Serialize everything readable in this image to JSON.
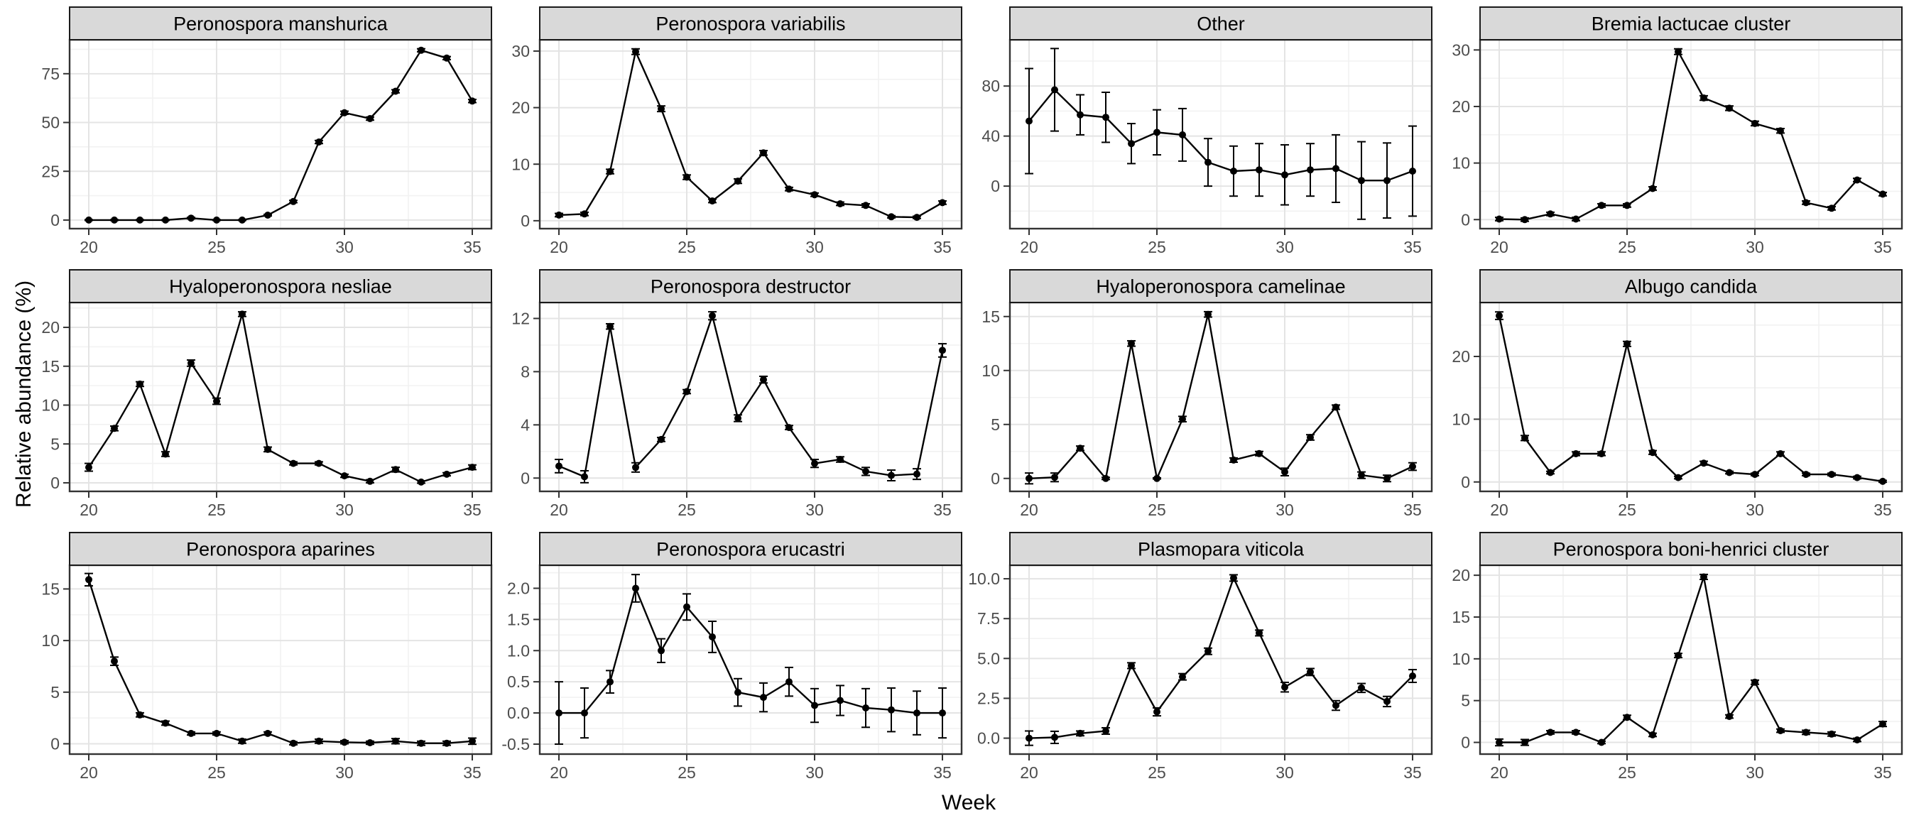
{
  "figure": {
    "kind": "faceted line chart (ggplot-style), 3 rows x 4 columns",
    "background": "#ffffff"
  },
  "style": {
    "strip_fill": "#d9d9d9",
    "strip_border": "#1a1a1a",
    "panel_border": "#333333",
    "grid_major": "#e4e4e4",
    "grid_minor": "#f2f2f2",
    "tick_color": "#333333",
    "tick_label_color": "#4d4d4d",
    "axis_title_color": "#000000",
    "series_color": "#000000"
  },
  "chart_data": {
    "type": "line",
    "faceted": true,
    "xlabel": "Week",
    "ylabel": "Relative abundance (%)",
    "x": [
      20,
      21,
      22,
      23,
      24,
      25,
      26,
      27,
      28,
      29,
      30,
      31,
      32,
      33,
      34,
      35
    ],
    "x_ticks": [
      20,
      25,
      30,
      35
    ],
    "x_tick_labels": [
      "20",
      "25",
      "30",
      "35"
    ],
    "x_domain": [
      19.25,
      35.75
    ],
    "grid": true,
    "legend": "none",
    "marker": "point",
    "error_bars": true,
    "panels": [
      {
        "title": "Peronospora manshurica",
        "values": [
          0,
          0,
          0,
          0,
          1,
          0,
          0,
          2.5,
          9.5,
          40,
          55,
          52,
          66,
          87,
          83,
          61
        ],
        "errors": [
          0.2,
          0.2,
          0.2,
          0.2,
          0.4,
          0.2,
          0.2,
          0.4,
          0.6,
          0.8,
          0.8,
          0.8,
          0.8,
          0.8,
          0.8,
          0.8
        ],
        "y_ticks": [
          0,
          25,
          50,
          75
        ],
        "y_tick_labels": [
          "0",
          "25",
          "50",
          "75"
        ],
        "y_domain": [
          -4.4,
          92.4
        ]
      },
      {
        "title": "Peronospora variabilis",
        "values": [
          1,
          1.2,
          8.7,
          29.9,
          19.8,
          7.7,
          3.5,
          7,
          12,
          5.6,
          4.6,
          3,
          2.7,
          0.7,
          0.6,
          3.2
        ],
        "errors": [
          0.3,
          0.3,
          0.4,
          0.5,
          0.5,
          0.4,
          0.3,
          0.4,
          0.4,
          0.3,
          0.3,
          0.3,
          0.3,
          0.2,
          0.2,
          0.3
        ],
        "y_ticks": [
          0,
          10,
          20,
          30
        ],
        "y_tick_labels": [
          "0",
          "10",
          "20",
          "30"
        ],
        "y_domain": [
          -1.4,
          32
        ]
      },
      {
        "title": "Other",
        "values": [
          52,
          77,
          57,
          55,
          34,
          43,
          41,
          19,
          12,
          13,
          9,
          13,
          14,
          4.5,
          4.5,
          12
        ],
        "errors": [
          42,
          33,
          16,
          20,
          16,
          18,
          21,
          19,
          20,
          21,
          24,
          21,
          27,
          31,
          30,
          36
        ],
        "y_ticks": [
          0,
          40,
          80
        ],
        "y_tick_labels": [
          "0",
          "40",
          "80"
        ],
        "y_domain": [
          -34,
          117
        ]
      },
      {
        "title": "Bremia lactucae cluster",
        "values": [
          0.1,
          0,
          1,
          0.1,
          2.5,
          2.5,
          5.5,
          29.7,
          21.5,
          19.7,
          17,
          15.7,
          3,
          2,
          7,
          4.5
        ],
        "errors": [
          0.3,
          0.3,
          0.3,
          0.3,
          0.3,
          0.3,
          0.3,
          0.5,
          0.4,
          0.4,
          0.4,
          0.4,
          0.3,
          0.3,
          0.3,
          0.3
        ],
        "y_ticks": [
          0,
          10,
          20,
          30
        ],
        "y_tick_labels": [
          "0",
          "10",
          "20",
          "30"
        ],
        "y_domain": [
          -1.6,
          31.8
        ]
      },
      {
        "title": "Hyaloperonospora nesliae",
        "values": [
          2,
          7,
          12.7,
          3.7,
          15.4,
          10.5,
          21.7,
          4.3,
          2.5,
          2.5,
          0.9,
          0.2,
          1.7,
          0.1,
          1.1,
          2
        ],
        "errors": [
          0.5,
          0.3,
          0.3,
          0.3,
          0.4,
          0.4,
          0.3,
          0.3,
          0.2,
          0.2,
          0.2,
          0.2,
          0.3,
          0.15,
          0.2,
          0.3
        ],
        "y_ticks": [
          0,
          5,
          10,
          15,
          20
        ],
        "y_tick_labels": [
          "0",
          "5",
          "10",
          "15",
          "20"
        ],
        "y_domain": [
          -1.1,
          23.2
        ]
      },
      {
        "title": "Peronospora destructor",
        "values": [
          0.9,
          0.1,
          11.4,
          0.8,
          2.9,
          6.5,
          12.2,
          4.5,
          7.4,
          3.8,
          1.1,
          1.4,
          0.5,
          0.2,
          0.3,
          9.6
        ],
        "errors": [
          0.5,
          0.45,
          0.2,
          0.35,
          0.15,
          0.15,
          0.3,
          0.25,
          0.25,
          0.15,
          0.3,
          0.2,
          0.3,
          0.4,
          0.4,
          0.5
        ],
        "y_ticks": [
          0,
          4,
          8,
          12
        ],
        "y_tick_labels": [
          "0",
          "4",
          "8",
          "12"
        ],
        "y_domain": [
          -1,
          13.2
        ]
      },
      {
        "title": "Hyaloperonospora camelinae",
        "values": [
          0,
          0.1,
          2.8,
          0,
          12.5,
          0,
          5.5,
          15.2,
          1.7,
          2.3,
          0.6,
          3.8,
          6.6,
          0.3,
          0,
          1.1
        ],
        "errors": [
          0.5,
          0.4,
          0.2,
          0.1,
          0.25,
          0.05,
          0.25,
          0.25,
          0.2,
          0.2,
          0.35,
          0.25,
          0.2,
          0.3,
          0.3,
          0.35
        ],
        "y_ticks": [
          0,
          5,
          10,
          15
        ],
        "y_tick_labels": [
          "0",
          "5",
          "10",
          "15"
        ],
        "y_domain": [
          -1.2,
          16.3
        ]
      },
      {
        "title": "Albugo candida",
        "values": [
          26.5,
          7,
          1.5,
          4.5,
          4.5,
          22,
          4.7,
          0.7,
          3,
          1.5,
          1.2,
          4.5,
          1.2,
          1.2,
          0.7,
          0.1
        ],
        "errors": [
          0.6,
          0.4,
          0.2,
          0.3,
          0.3,
          0.4,
          0.3,
          0.2,
          0.3,
          0.2,
          0.2,
          0.3,
          0.2,
          0.2,
          0.2,
          0.15
        ],
        "y_ticks": [
          0,
          10,
          20
        ],
        "y_tick_labels": [
          "0",
          "10",
          "20"
        ],
        "y_domain": [
          -1.5,
          28.6
        ]
      },
      {
        "title": "Peronospora aparines",
        "values": [
          15.9,
          8,
          2.8,
          2,
          1,
          1,
          0.25,
          1,
          0.05,
          0.25,
          0.15,
          0.1,
          0.25,
          0.05,
          0.05,
          0.25
        ],
        "errors": [
          0.6,
          0.4,
          0.2,
          0.2,
          0.15,
          0.15,
          0.2,
          0.15,
          0.15,
          0.2,
          0.15,
          0.15,
          0.25,
          0.2,
          0.2,
          0.3
        ],
        "y_ticks": [
          0,
          5,
          10,
          15
        ],
        "y_tick_labels": [
          "0",
          "5",
          "10",
          "15"
        ],
        "y_domain": [
          -1,
          17.3
        ]
      },
      {
        "title": "Peronospora erucastri",
        "values": [
          0,
          0,
          0.5,
          2,
          1,
          1.7,
          1.22,
          0.33,
          0.25,
          0.5,
          0.12,
          0.2,
          0.08,
          0.05,
          0,
          0
        ],
        "errors": [
          0.5,
          0.4,
          0.18,
          0.22,
          0.19,
          0.21,
          0.25,
          0.22,
          0.23,
          0.23,
          0.27,
          0.24,
          0.31,
          0.35,
          0.35,
          0.4
        ],
        "y_ticks": [
          -0.5,
          0,
          0.5,
          1,
          1.5,
          2
        ],
        "y_tick_labels": [
          "-0.5",
          "0.0",
          "0.5",
          "1.0",
          "1.5",
          "2.0"
        ],
        "y_domain": [
          -0.66,
          2.37
        ]
      },
      {
        "title": "Plasmopara viticola",
        "values": [
          0,
          0.05,
          0.3,
          0.45,
          4.55,
          1.65,
          3.85,
          5.45,
          10.05,
          6.6,
          3.2,
          4.15,
          2.05,
          3.15,
          2.3,
          3.9
        ],
        "errors": [
          0.45,
          0.38,
          0.15,
          0.2,
          0.18,
          0.25,
          0.2,
          0.2,
          0.2,
          0.18,
          0.3,
          0.22,
          0.3,
          0.28,
          0.32,
          0.4
        ],
        "y_ticks": [
          0,
          2.5,
          5,
          7.5,
          10
        ],
        "y_tick_labels": [
          "0.0",
          "2.5",
          "5.0",
          "7.5",
          "10.0"
        ],
        "y_domain": [
          -1,
          10.85
        ]
      },
      {
        "title": "Peronospora boni-henrici cluster",
        "values": [
          0,
          0,
          1.2,
          1.2,
          0,
          3,
          0.9,
          10.4,
          19.8,
          3.1,
          7.2,
          1.4,
          1.2,
          1,
          0.3,
          2.2
        ],
        "errors": [
          0.4,
          0.35,
          0.2,
          0.2,
          0.15,
          0.25,
          0.2,
          0.25,
          0.3,
          0.2,
          0.25,
          0.2,
          0.25,
          0.25,
          0.2,
          0.3
        ],
        "y_ticks": [
          0,
          5,
          10,
          15,
          20
        ],
        "y_tick_labels": [
          "0",
          "5",
          "10",
          "15",
          "20"
        ],
        "y_domain": [
          -1.4,
          21.2
        ]
      }
    ]
  }
}
